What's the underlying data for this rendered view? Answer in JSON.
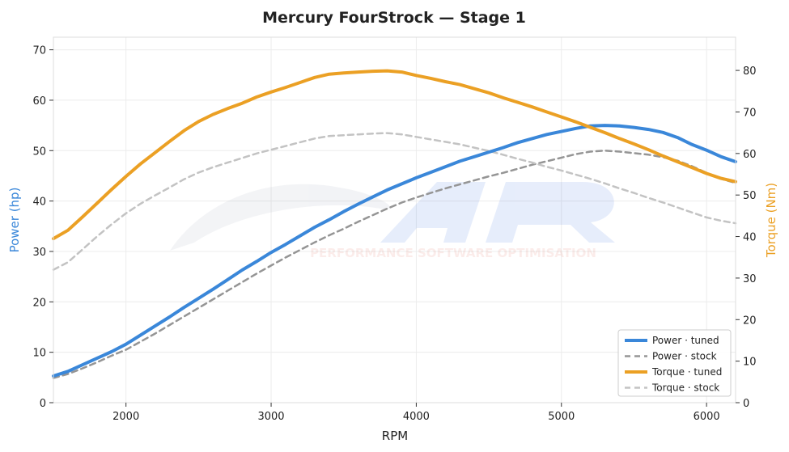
{
  "chart_data": {
    "type": "line",
    "title": "Mercury FourStrock — Stage 1",
    "xlabel": "RPM",
    "ylabel_left": "Power (hp)",
    "ylabel_right": "Torque (Nm)",
    "xlim": [
      1500,
      6200
    ],
    "ylim_left": [
      0,
      72.5
    ],
    "ylim_right": [
      0,
      88
    ],
    "x_ticks": [
      2000,
      3000,
      4000,
      5000,
      6000
    ],
    "y_ticks_left": [
      0,
      10,
      20,
      30,
      40,
      50,
      60,
      70
    ],
    "y_ticks_right": [
      0,
      10,
      20,
      30,
      40,
      50,
      60,
      70,
      80
    ],
    "grid": true,
    "legend_position": "bottom-right",
    "watermark": "PERFORMANCE SOFTWARE OPTIMISATION",
    "rpm": [
      1500,
      1600,
      1700,
      1800,
      1900,
      2000,
      2100,
      2200,
      2300,
      2400,
      2500,
      2600,
      2700,
      2800,
      2900,
      3000,
      3100,
      3200,
      3300,
      3400,
      3500,
      3600,
      3700,
      3800,
      3900,
      4000,
      4100,
      4200,
      4300,
      4400,
      4500,
      4600,
      4700,
      4800,
      4900,
      5000,
      5100,
      5200,
      5300,
      5400,
      5500,
      5600,
      5700,
      5800,
      5900,
      6000,
      6100,
      6200
    ],
    "series": [
      {
        "name": "Power · tuned",
        "axis": "left",
        "color": "#3a87d9",
        "dash": "solid",
        "values": [
          5.3,
          6.2,
          7.5,
          8.8,
          10.1,
          11.6,
          13.4,
          15.2,
          17.0,
          18.9,
          20.7,
          22.5,
          24.4,
          26.3,
          28.0,
          29.8,
          31.4,
          33.1,
          34.8,
          36.3,
          37.9,
          39.4,
          40.8,
          42.2,
          43.4,
          44.6,
          45.7,
          46.8,
          47.9,
          48.8,
          49.7,
          50.6,
          51.6,
          52.4,
          53.2,
          53.8,
          54.4,
          54.9,
          55.0,
          54.9,
          54.6,
          54.2,
          53.6,
          52.6,
          51.2,
          50.1,
          48.8,
          47.8
        ]
      },
      {
        "name": "Power · stock",
        "axis": "left",
        "color": "#959595",
        "dash": "dashed",
        "values": [
          4.9,
          5.7,
          6.8,
          8.0,
          9.3,
          10.5,
          12.1,
          13.7,
          15.4,
          17.1,
          18.8,
          20.5,
          22.2,
          23.9,
          25.6,
          27.2,
          28.8,
          30.3,
          31.8,
          33.2,
          34.5,
          35.9,
          37.2,
          38.5,
          39.7,
          40.7,
          41.6,
          42.5,
          43.3,
          44.1,
          44.9,
          45.6,
          46.4,
          47.2,
          47.9,
          48.6,
          49.3,
          49.8,
          50.0,
          49.8,
          49.5,
          49.2,
          48.7,
          48.0,
          46.9,
          45.6,
          44.4,
          43.6
        ]
      },
      {
        "name": "Torque · tuned",
        "axis": "right",
        "color": "#eba024",
        "dash": "solid",
        "values": [
          39.5,
          41.5,
          44.7,
          48.0,
          51.3,
          54.5,
          57.5,
          60.2,
          62.9,
          65.5,
          67.7,
          69.4,
          70.8,
          72.1,
          73.6,
          74.8,
          75.9,
          77.1,
          78.3,
          79.1,
          79.4,
          79.6,
          79.8,
          79.9,
          79.6,
          78.8,
          78.1,
          77.3,
          76.6,
          75.6,
          74.6,
          73.4,
          72.3,
          71.2,
          70.0,
          68.8,
          67.6,
          66.3,
          65.0,
          63.6,
          62.3,
          60.9,
          59.4,
          58.0,
          56.6,
          55.2,
          54.0,
          53.2
        ]
      },
      {
        "name": "Torque · stock",
        "axis": "right",
        "color": "#c3c3c3",
        "dash": "dashed",
        "values": [
          32.0,
          33.8,
          36.9,
          40.0,
          42.9,
          45.6,
          47.9,
          49.9,
          51.8,
          53.8,
          55.4,
          56.7,
          57.8,
          58.9,
          60.0,
          60.9,
          61.8,
          62.7,
          63.6,
          64.2,
          64.4,
          64.6,
          64.8,
          64.9,
          64.6,
          64.0,
          63.4,
          62.8,
          62.2,
          61.4,
          60.6,
          59.7,
          58.7,
          57.8,
          56.8,
          55.9,
          54.9,
          53.9,
          52.8,
          51.6,
          50.5,
          49.3,
          48.2,
          47.0,
          45.8,
          44.6,
          43.8,
          43.2
        ]
      }
    ]
  }
}
